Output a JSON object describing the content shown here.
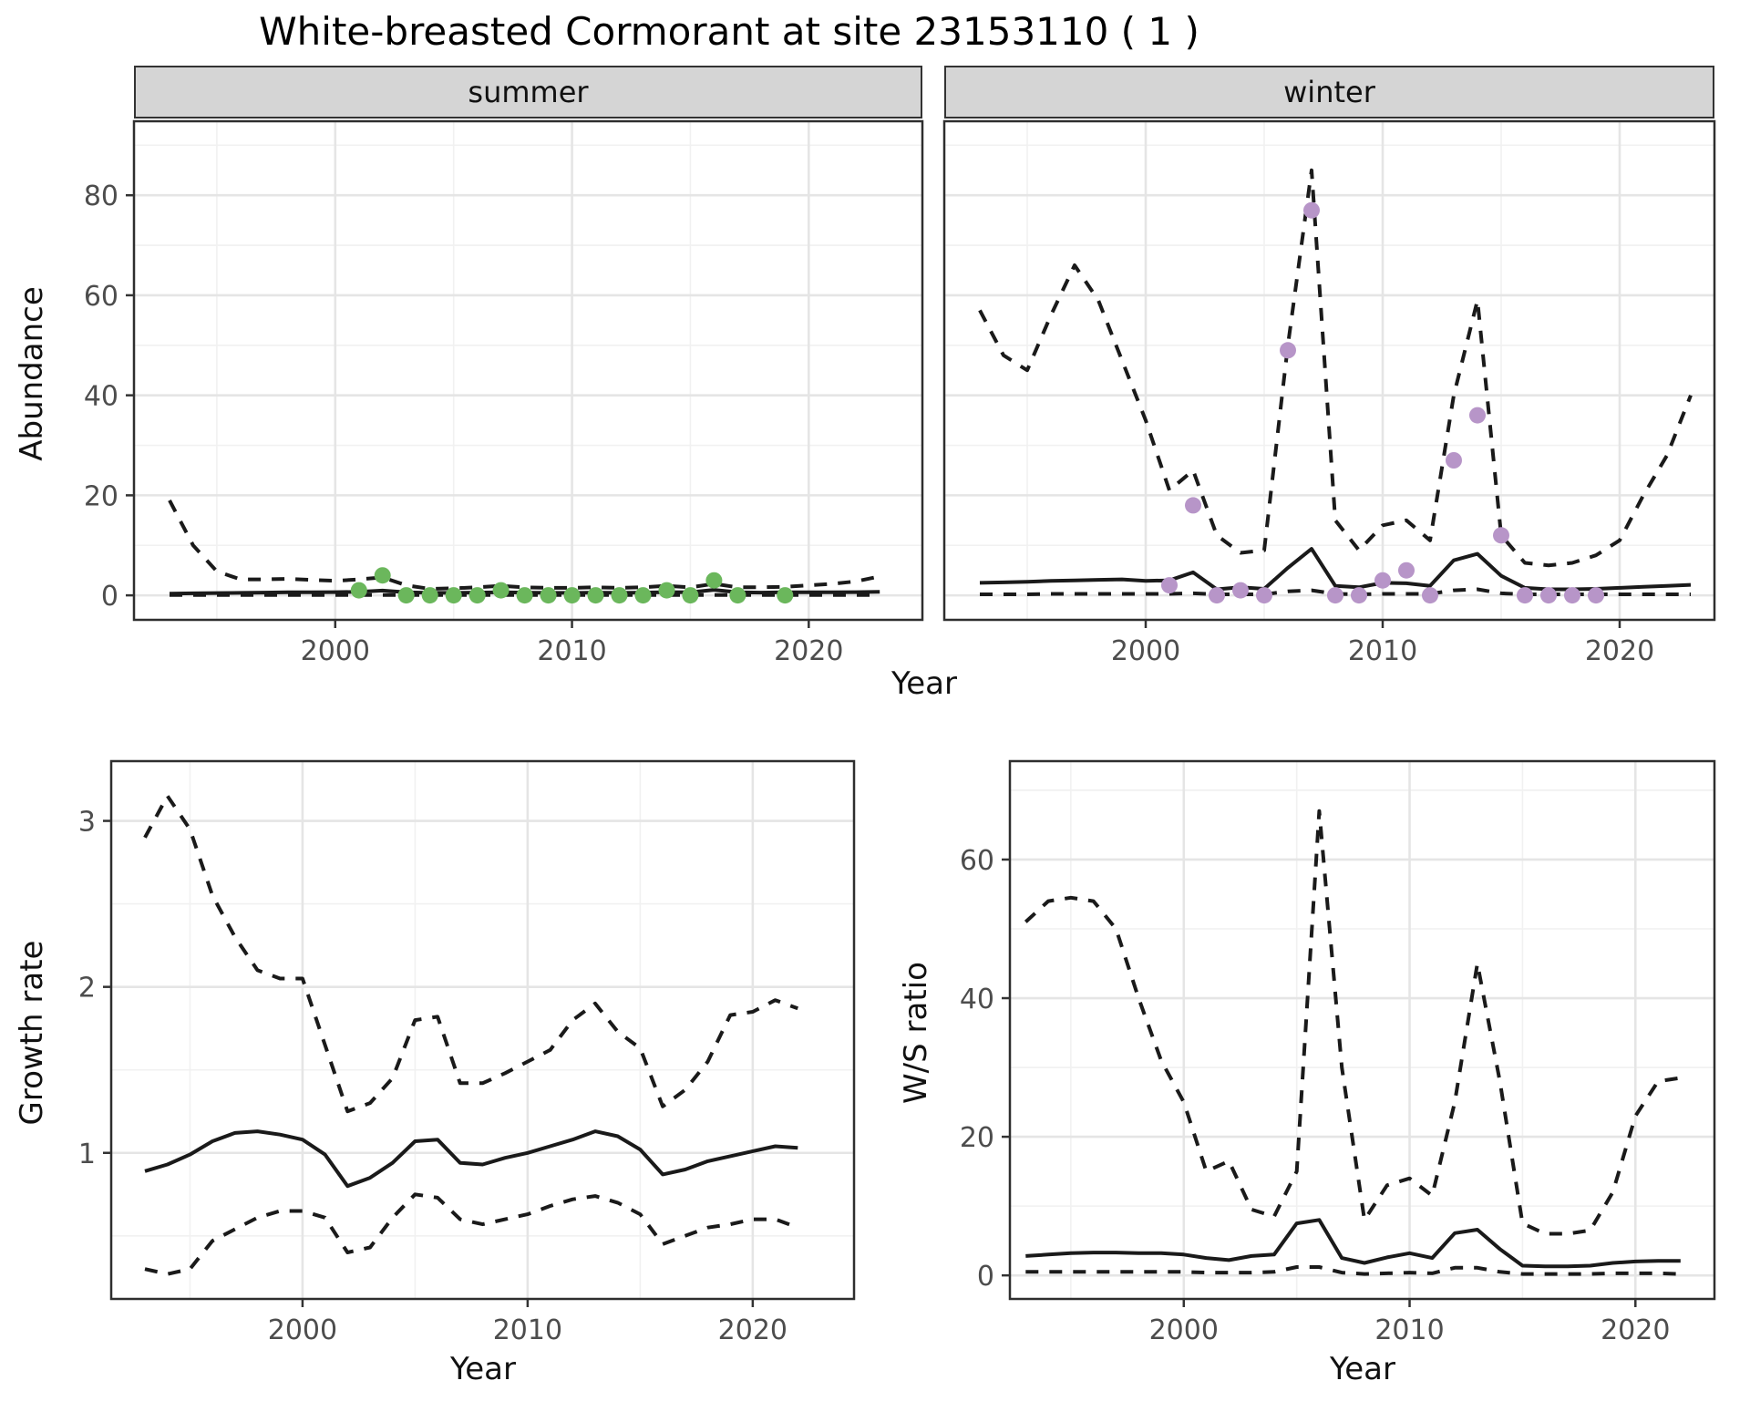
{
  "title": "White-breasted Cormorant at site 23153110 ( 1 )",
  "facet_labels": {
    "summer": "summer",
    "winter": "winter"
  },
  "axis_titles": {
    "abundance_y": "Abundance",
    "top_x": "Year",
    "growth_y": "Growth rate",
    "growth_x": "Year",
    "ws_y": "W/S ratio",
    "ws_x": "Year"
  },
  "colors": {
    "summer_points": "#6bb75c",
    "winter_points": "#b795c8",
    "line": "#1a1a1a",
    "grid_major": "#e5e5e5",
    "grid_minor": "#f1f1f1",
    "panel_border": "#2e2e2e",
    "axis_text": "#4d4d4d",
    "tick_mark": "#333333",
    "strip_bg": "#d5d5d5"
  },
  "chart_data": [
    {
      "id": "summer",
      "type": "line",
      "facet": "summer",
      "xlim": [
        1991.5,
        2024.8
      ],
      "ylim": [
        -4.9,
        94.8
      ],
      "show_y_labels": true,
      "x_ticks": {
        "values": [
          2000,
          2010,
          2020
        ],
        "labels": [
          "2000",
          "2010",
          "2020"
        ],
        "minor": [
          1995,
          2005,
          2015
        ]
      },
      "y_ticks": {
        "values": [
          0,
          20,
          40,
          60,
          80
        ],
        "labels": [
          "0",
          "20",
          "40",
          "60",
          "80"
        ],
        "minor": [
          10,
          30,
          50,
          70,
          90
        ]
      },
      "years": [
        1993,
        1994,
        1995,
        1996,
        1997,
        1998,
        1999,
        2000,
        2001,
        2002,
        2003,
        2004,
        2005,
        2006,
        2007,
        2008,
        2009,
        2010,
        2011,
        2012,
        2013,
        2014,
        2015,
        2016,
        2017,
        2018,
        2019,
        2020,
        2021,
        2022,
        2023
      ],
      "series": [
        {
          "name": "upper_ci",
          "style": "dashed",
          "values": [
            19,
            10,
            4.8,
            3.2,
            3.2,
            3.3,
            3.1,
            2.9,
            3.2,
            3.6,
            2.0,
            1.3,
            1.4,
            1.6,
            1.9,
            1.6,
            1.5,
            1.5,
            1.6,
            1.5,
            1.6,
            1.9,
            1.6,
            2.3,
            1.6,
            1.6,
            1.7,
            2.0,
            2.3,
            2.8,
            3.8
          ]
        },
        {
          "name": "median",
          "style": "solid",
          "values": [
            0.35,
            0.4,
            0.45,
            0.5,
            0.55,
            0.6,
            0.62,
            0.65,
            0.7,
            0.95,
            0.6,
            0.5,
            0.5,
            0.55,
            0.6,
            0.55,
            0.5,
            0.5,
            0.55,
            0.5,
            0.55,
            0.65,
            0.6,
            1.1,
            0.6,
            0.55,
            0.6,
            0.6,
            0.6,
            0.65,
            0.7
          ]
        },
        {
          "name": "lower_ci",
          "style": "dashed",
          "values": [
            0.05,
            0.05,
            0.05,
            0.05,
            0.05,
            0.05,
            0.05,
            0.05,
            0.05,
            0.05,
            0.05,
            0.05,
            0.05,
            0.05,
            0.05,
            0.05,
            0.05,
            0.05,
            0.05,
            0.05,
            0.05,
            0.05,
            0.05,
            0.05,
            0.05,
            0.05,
            0.05,
            0.05,
            0.05,
            0.05,
            0.05
          ]
        }
      ],
      "points": {
        "color_key": "summer_points",
        "years": [
          2001,
          2002,
          2003,
          2004,
          2005,
          2006,
          2007,
          2008,
          2009,
          2010,
          2011,
          2012,
          2013,
          2014,
          2015,
          2016,
          2017,
          2019
        ],
        "values": [
          1,
          4,
          0,
          0,
          0,
          0,
          1,
          0,
          0,
          0,
          0,
          0,
          0,
          1,
          0,
          3,
          0,
          0
        ]
      }
    },
    {
      "id": "winter",
      "type": "line",
      "facet": "winter",
      "xlim": [
        1991.5,
        2024.0
      ],
      "ylim": [
        -4.9,
        94.8
      ],
      "show_y_labels": false,
      "x_ticks": {
        "values": [
          2000,
          2010,
          2020
        ],
        "labels": [
          "2000",
          "2010",
          "2020"
        ],
        "minor": [
          1995,
          2005,
          2015
        ]
      },
      "y_ticks": {
        "values": [
          0,
          20,
          40,
          60,
          80
        ],
        "labels": [
          "0",
          "20",
          "40",
          "60",
          "80"
        ],
        "minor": [
          10,
          30,
          50,
          70,
          90
        ]
      },
      "years": [
        1993,
        1994,
        1995,
        1996,
        1997,
        1998,
        1999,
        2000,
        2001,
        2002,
        2003,
        2004,
        2005,
        2006,
        2007,
        2008,
        2009,
        2010,
        2011,
        2012,
        2013,
        2014,
        2015,
        2016,
        2017,
        2018,
        2019,
        2020,
        2021,
        2022,
        2023
      ],
      "series": [
        {
          "name": "upper_ci",
          "style": "dashed",
          "values": [
            57,
            48,
            45,
            56,
            66,
            59,
            47,
            35,
            21,
            25,
            12,
            8.5,
            9,
            50,
            85,
            15,
            9,
            14,
            15,
            11,
            40,
            59,
            12,
            6.5,
            6,
            6.5,
            8,
            11,
            20,
            28,
            40
          ]
        },
        {
          "name": "median",
          "style": "solid",
          "values": [
            2.5,
            2.6,
            2.7,
            2.9,
            3.0,
            3.1,
            3.2,
            2.9,
            3.0,
            4.6,
            1.2,
            1.6,
            1.3,
            5.5,
            9.3,
            1.9,
            1.6,
            2.5,
            2.4,
            1.9,
            7.0,
            8.3,
            3.9,
            1.5,
            1.2,
            1.2,
            1.3,
            1.5,
            1.7,
            1.9,
            2.1
          ]
        },
        {
          "name": "lower_ci",
          "style": "dashed",
          "values": [
            0.2,
            0.2,
            0.2,
            0.3,
            0.3,
            0.3,
            0.3,
            0.3,
            0.3,
            0.4,
            0.2,
            0.2,
            0.2,
            0.8,
            1.0,
            0.3,
            0.2,
            0.3,
            0.3,
            0.3,
            1.0,
            1.2,
            0.4,
            0.2,
            0.2,
            0.2,
            0.2,
            0.2,
            0.2,
            0.2,
            0.2
          ]
        }
      ],
      "points": {
        "color_key": "winter_points",
        "years": [
          2001,
          2002,
          2003,
          2004,
          2005,
          2006,
          2007,
          2008,
          2009,
          2010,
          2011,
          2012,
          2013,
          2014,
          2015,
          2016,
          2017,
          2018,
          2019
        ],
        "values": [
          2,
          18,
          0,
          1,
          0,
          49,
          77,
          0,
          0,
          3,
          5,
          0,
          27,
          36,
          12,
          0,
          0,
          0,
          0
        ]
      }
    },
    {
      "id": "growth",
      "type": "line",
      "facet": "",
      "xlim": [
        1991.5,
        2024.5
      ],
      "ylim": [
        0.12,
        3.36
      ],
      "show_y_labels": true,
      "x_ticks": {
        "values": [
          2000,
          2010,
          2020
        ],
        "labels": [
          "2000",
          "2010",
          "2020"
        ],
        "minor": [
          1995,
          2005,
          2015
        ]
      },
      "y_ticks": {
        "values": [
          1,
          2,
          3
        ],
        "labels": [
          "1",
          "2",
          "3"
        ],
        "minor": [
          0.5,
          1.5,
          2.5
        ]
      },
      "years": [
        1993,
        1994,
        1995,
        1996,
        1997,
        1998,
        1999,
        2000,
        2001,
        2002,
        2003,
        2004,
        2005,
        2006,
        2007,
        2008,
        2009,
        2010,
        2011,
        2012,
        2013,
        2014,
        2015,
        2016,
        2017,
        2018,
        2019,
        2020,
        2021,
        2022
      ],
      "series": [
        {
          "name": "upper_ci",
          "style": "dashed",
          "values": [
            2.9,
            3.15,
            2.95,
            2.55,
            2.3,
            2.1,
            2.05,
            2.05,
            1.65,
            1.25,
            1.3,
            1.45,
            1.8,
            1.82,
            1.42,
            1.42,
            1.48,
            1.55,
            1.62,
            1.8,
            1.9,
            1.73,
            1.63,
            1.28,
            1.38,
            1.55,
            1.83,
            1.85,
            1.92,
            1.87
          ]
        },
        {
          "name": "median",
          "style": "solid",
          "values": [
            0.89,
            0.93,
            0.99,
            1.07,
            1.12,
            1.13,
            1.11,
            1.08,
            0.99,
            0.8,
            0.85,
            0.94,
            1.07,
            1.08,
            0.94,
            0.93,
            0.97,
            1.0,
            1.04,
            1.08,
            1.13,
            1.1,
            1.02,
            0.87,
            0.9,
            0.95,
            0.98,
            1.01,
            1.04,
            1.03
          ]
        },
        {
          "name": "lower_ci",
          "style": "dashed",
          "values": [
            0.3,
            0.27,
            0.3,
            0.47,
            0.54,
            0.61,
            0.65,
            0.65,
            0.61,
            0.4,
            0.43,
            0.61,
            0.75,
            0.73,
            0.6,
            0.57,
            0.6,
            0.63,
            0.68,
            0.72,
            0.74,
            0.7,
            0.63,
            0.45,
            0.5,
            0.55,
            0.57,
            0.6,
            0.6,
            0.55
          ]
        }
      ],
      "points": null
    },
    {
      "id": "ws",
      "type": "line",
      "facet": "",
      "xlim": [
        1992.3,
        2023.5
      ],
      "ylim": [
        -3.4,
        74.2
      ],
      "show_y_labels": true,
      "x_ticks": {
        "values": [
          2000,
          2010,
          2020
        ],
        "labels": [
          "2000",
          "2010",
          "2020"
        ],
        "minor": [
          1995,
          2005,
          2015
        ]
      },
      "y_ticks": {
        "values": [
          0,
          20,
          40,
          60
        ],
        "labels": [
          "0",
          "20",
          "40",
          "60"
        ],
        "minor": [
          10,
          30,
          50,
          70
        ]
      },
      "years": [
        1993,
        1994,
        1995,
        1996,
        1997,
        1998,
        1999,
        2000,
        2001,
        2002,
        2003,
        2004,
        2005,
        2006,
        2007,
        2008,
        2009,
        2010,
        2011,
        2012,
        2013,
        2014,
        2015,
        2016,
        2017,
        2018,
        2019,
        2020,
        2021,
        2022
      ],
      "series": [
        {
          "name": "upper_ci",
          "style": "dashed",
          "values": [
            51,
            54,
            54.5,
            54,
            50,
            40,
            31,
            25,
            15,
            16.5,
            9.5,
            8.5,
            15,
            67,
            30,
            8,
            13,
            14,
            11.5,
            25,
            45,
            28,
            7.5,
            6,
            6,
            6.5,
            12,
            23,
            28,
            28.5
          ]
        },
        {
          "name": "median",
          "style": "solid",
          "values": [
            2.8,
            3.0,
            3.2,
            3.3,
            3.3,
            3.2,
            3.2,
            3.0,
            2.5,
            2.2,
            2.8,
            3.0,
            7.5,
            8.0,
            2.5,
            1.8,
            2.6,
            3.2,
            2.5,
            6.1,
            6.6,
            3.8,
            1.4,
            1.3,
            1.3,
            1.4,
            1.8,
            2.0,
            2.1,
            2.1
          ]
        },
        {
          "name": "lower_ci",
          "style": "dashed",
          "values": [
            0.5,
            0.5,
            0.5,
            0.5,
            0.5,
            0.5,
            0.5,
            0.5,
            0.4,
            0.4,
            0.4,
            0.5,
            1.2,
            1.2,
            0.4,
            0.2,
            0.3,
            0.4,
            0.3,
            1.1,
            1.1,
            0.5,
            0.2,
            0.2,
            0.2,
            0.2,
            0.3,
            0.3,
            0.3,
            0.2
          ]
        }
      ],
      "points": null
    }
  ]
}
